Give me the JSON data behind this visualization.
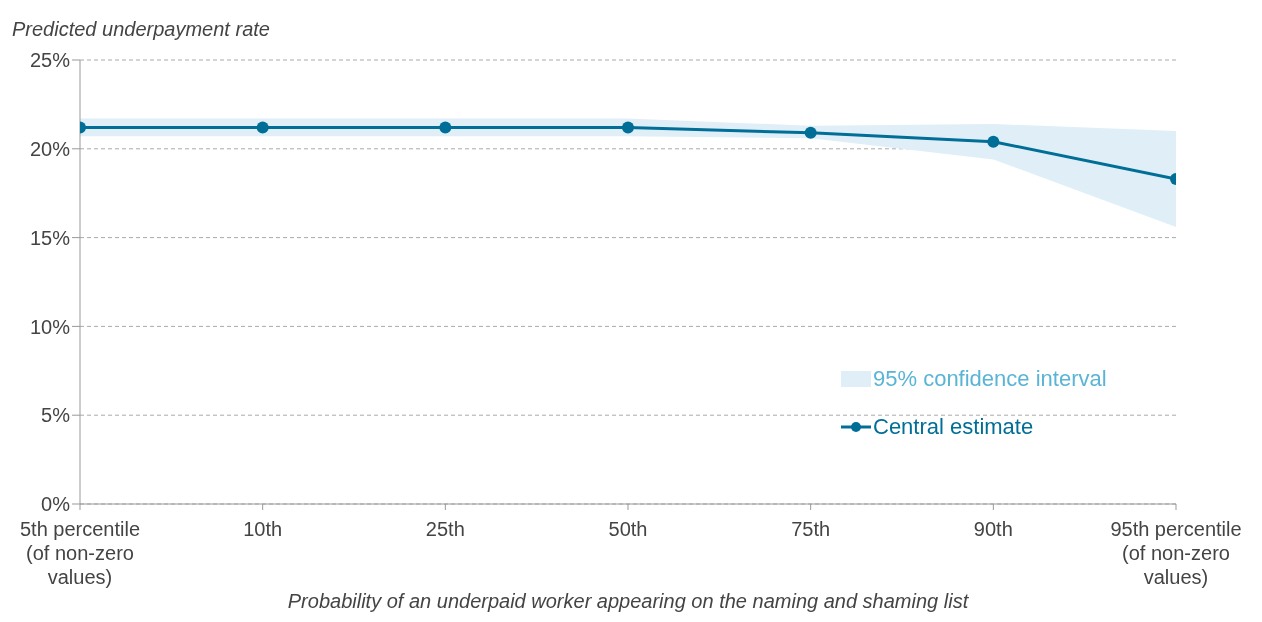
{
  "chart_data": {
    "type": "line",
    "ylabel": "Predicted underpayment rate",
    "xlabel": "Probability of an underpaid worker appearing on the naming and shaming list",
    "categories": [
      "5th percentile (of non-zero values)",
      "10th",
      "25th",
      "50th",
      "75th",
      "90th",
      "95th percentile (of non-zero values)"
    ],
    "series": [
      {
        "name": "Central estimate",
        "color": "#006e96",
        "values": [
          21.2,
          21.2,
          21.2,
          21.2,
          20.9,
          20.4,
          18.3
        ],
        "lower": [
          20.7,
          20.7,
          20.7,
          20.7,
          20.6,
          19.4,
          15.6
        ],
        "upper": [
          21.7,
          21.7,
          21.7,
          21.7,
          21.3,
          21.4,
          21.0
        ]
      }
    ],
    "annotations": [
      "95% confidence interval"
    ],
    "ylim": [
      0,
      25
    ],
    "yticks": [
      {
        "value": 0,
        "label": "0%"
      },
      {
        "value": 5,
        "label": "5%"
      },
      {
        "value": 10,
        "label": "10%"
      },
      {
        "value": 15,
        "label": "15%"
      },
      {
        "value": 20,
        "label": "20%"
      },
      {
        "value": 25,
        "label": "25%"
      }
    ],
    "grid": "y",
    "legend": "bottom right",
    "marker": "circle",
    "line_style": "solid"
  }
}
